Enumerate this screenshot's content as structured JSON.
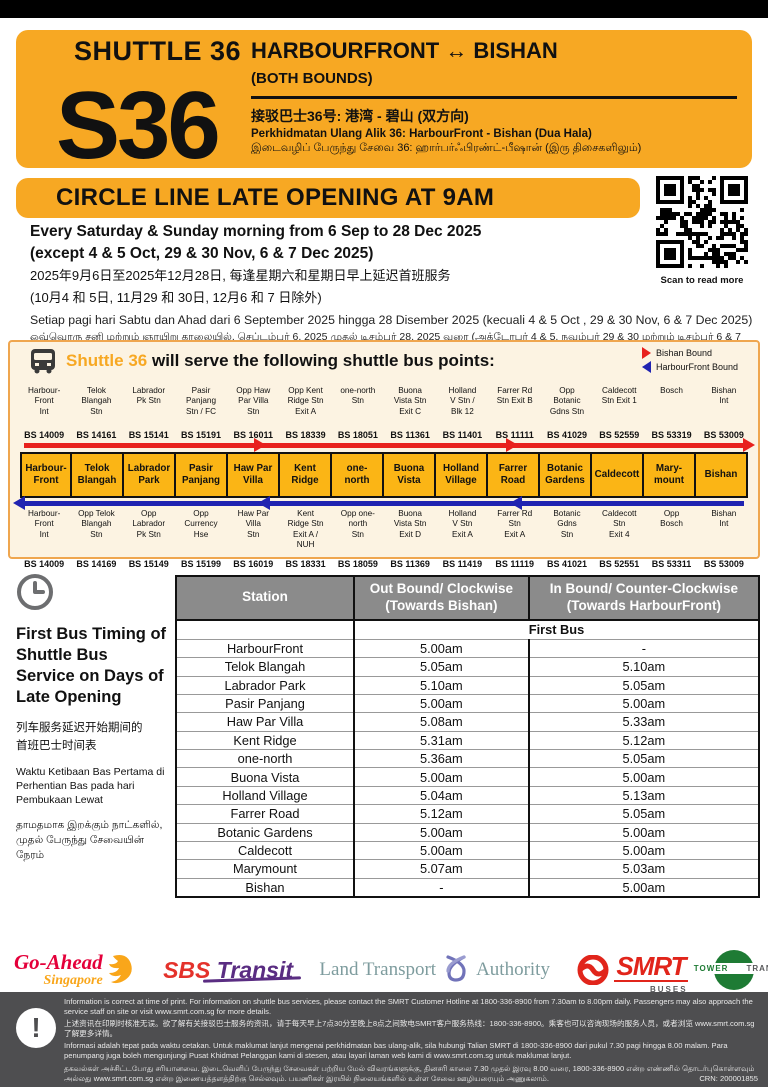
{
  "header": {
    "shuttle_label": "SHUTTLE 36",
    "route_code": "S36",
    "title_en": "HARBOURFRONT ↔ BISHAN",
    "subtitle_en": "(BOTH BOUNDS)",
    "title_zh": "接驳巴士36号: 港湾 - 碧山 (双方向)",
    "title_ms": "Perkhidmatan Ulang Alik 36: HarbourFront - Bishan (Dua Hala)",
    "title_ta": "இடைவழிப் பேருந்து சேவை 36: ஹார்பர்ஃபிரண்ட்-பீஷான் (இரு திசைகளிலும்)"
  },
  "notice": {
    "banner": "CIRCLE LINE LATE OPENING AT 9AM",
    "en_1": "Every Saturday & Sunday morning from 6 Sep to 28 Dec 2025",
    "en_2": "(except 4 & 5 Oct, 29 & 30 Nov, 6 & 7 Dec 2025)",
    "zh_1": "2025年9月6日至2025年12月28日, 每逢星期六和星期日早上延迟首班服务",
    "zh_2": "(10月4 和 5日, 11月29 和 30日, 12月6 和 7 日除外)",
    "ms": "Setiap pagi hari Sabtu dan Ahad dari 6 September 2025 hingga 28 Disember 2025 (kecuali 4 & 5 Oct , 29 & 30 Nov, 6 & 7 Dec 2025)",
    "ta": "ஒவ்வொரு சனி மற்றும் ஞாயிறு காலையில், செப்டம்பர் 6, 2025 முதல் டிசம்பர் 28, 2025 வரை (அக்டோபர் 4 & 5, நவம்பர் 29 & 30 மற்றும் டிசம்பர் 6 & 7 தவிர)",
    "qr_caption": "Scan to read more"
  },
  "route_map": {
    "title_prefix": "Shuttle 36",
    "title_rest": " will serve the following shuttle bus points:",
    "legend": [
      {
        "label": "Bishan Bound",
        "color": "#E8211D"
      },
      {
        "label": "HarbourFront Bound",
        "color": "#2023B1"
      }
    ],
    "outbound_stops": [
      {
        "name": "Harbour-\nFront\nInt",
        "code": "BS 14009"
      },
      {
        "name": "Telok\nBlangah\nStn",
        "code": "BS 14161"
      },
      {
        "name": "Labrador\nPk Stn",
        "code": "BS 15141"
      },
      {
        "name": "Pasir\nPanjang\nStn / FC",
        "code": "BS 15191"
      },
      {
        "name": "Opp Haw\nPar Villa\nStn",
        "code": "BS 16011"
      },
      {
        "name": "Opp Kent\nRidge Stn\nExit A",
        "code": "BS 18339"
      },
      {
        "name": "one-north\nStn",
        "code": "BS 18051"
      },
      {
        "name": "Buona\nVista Stn\nExit C",
        "code": "BS 11361"
      },
      {
        "name": "Holland\nV Stn /\nBlk 12",
        "code": "BS 11401"
      },
      {
        "name": "Farrer Rd\nStn Exit B",
        "code": "BS 11111"
      },
      {
        "name": "Opp\nBotanic\nGdns Stn",
        "code": "BS 41029"
      },
      {
        "name": "Caldecott\nStn Exit 1",
        "code": "BS 52559"
      },
      {
        "name": "Bosch",
        "code": "BS 53319"
      },
      {
        "name": "Bishan\nInt",
        "code": "BS 53009"
      }
    ],
    "stations": [
      "Harbour-\nFront",
      "Telok\nBlangah",
      "Labrador\nPark",
      "Pasir\nPanjang",
      "Haw Par\nVilla",
      "Kent\nRidge",
      "one-\nnorth",
      "Buona\nVista",
      "Holland\nVillage",
      "Farrer\nRoad",
      "Botanic\nGardens",
      "Caldecott",
      "Mary-\nmount",
      "Bishan"
    ],
    "inbound_stops": [
      {
        "name": "Harbour-\nFront\nInt",
        "code": "BS 14009"
      },
      {
        "name": "Opp Telok\nBlangah\nStn",
        "code": "BS 14169"
      },
      {
        "name": "Opp\nLabrador\nPk Stn",
        "code": "BS 15149"
      },
      {
        "name": "Opp\nCurrency\nHse",
        "code": "BS 15199"
      },
      {
        "name": "Haw Par\nVilla\nStn",
        "code": "BS 16019"
      },
      {
        "name": "Kent\nRidge Stn\nExit A /\nNUH",
        "code": "BS 18331"
      },
      {
        "name": "Opp one-\nnorth\nStn",
        "code": "BS 18059"
      },
      {
        "name": "Buona\nVista Stn\nExit D",
        "code": "BS 11369"
      },
      {
        "name": "Holland\nV Stn\nExit A",
        "code": "BS 11419"
      },
      {
        "name": "Farrer Rd\nStn\nExit A",
        "code": "BS 11119"
      },
      {
        "name": "Botanic\nGdns\nStn",
        "code": "BS 41021"
      },
      {
        "name": "Caldecott\nStn\nExit 4",
        "code": "BS 52551"
      },
      {
        "name": "Opp\nBosch",
        "code": "BS 53311"
      },
      {
        "name": "Bishan\nInt",
        "code": "BS 53009"
      }
    ]
  },
  "timing": {
    "heading_en": "First Bus Timing of Shuttle Bus Service on Days of Late Opening",
    "heading_zh": "列车服务延迟开始期间的\n首班巴士时间表",
    "heading_ms": "Waktu Ketibaan Bas Pertama di Perhentian Bas pada hari Pembukaan Lewat",
    "heading_ta": "தாமதமாக இறக்கும் நாட்களில், முதல் பேருந்து சேவையின் நேரம்"
  },
  "table": {
    "headers": [
      "Station",
      "Out Bound/ Clockwise (Towards Bishan)",
      "In Bound/ Counter-Clockwise (Towards HarbourFront)"
    ],
    "subheader": "First Bus",
    "rows": [
      [
        "HarbourFront",
        "5.00am",
        "-"
      ],
      [
        "Telok Blangah",
        "5.05am",
        "5.10am"
      ],
      [
        "Labrador Park",
        "5.10am",
        "5.05am"
      ],
      [
        "Pasir Panjang",
        "5.00am",
        "5.00am"
      ],
      [
        "Haw Par Villa",
        "5.08am",
        "5.33am"
      ],
      [
        "Kent Ridge",
        "5.31am",
        "5.12am"
      ],
      [
        "one-north",
        "5.36am",
        "5.05am"
      ],
      [
        "Buona Vista",
        "5.00am",
        "5.00am"
      ],
      [
        "Holland Village",
        "5.04am",
        "5.13am"
      ],
      [
        "Farrer Road",
        "5.12am",
        "5.05am"
      ],
      [
        "Botanic Gardens",
        "5.00am",
        "5.00am"
      ],
      [
        "Caldecott",
        "5.00am",
        "5.00am"
      ],
      [
        "Marymount",
        "5.07am",
        "5.03am"
      ],
      [
        "Bishan",
        "-",
        "5.00am"
      ]
    ]
  },
  "logos": {
    "goahead_1": "Go-Ahead",
    "goahead_2": "Singapore",
    "sbs_1": "SBS ",
    "sbs_2": "Transit",
    "lta_1": "Land Transport",
    "lta_2": "Authority",
    "smrt": "SMRT",
    "smrt_sub": "BUSES",
    "tower_1": "TOWER",
    "tower_2": "TRANSIT"
  },
  "footer": {
    "en": "Information is correct at time of print. For information on shuttle bus services, please contact the SMRT Customer Hotline at 1800-336-8900 from 7.30am to 8.00pm daily. Passengers may also approach the service staff on site or visit www.smrt.com.sg for more details.",
    "zh": "上述资讯在印刷时核准无误。欲了解有关接驳巴士服务的资讯，请于每天早上7点30分至晚上8点之间致电SMRT客户服务热线：1800-336-8900。乘客也可以咨询现场的服务人员，或者浏览 www.smrt.com.sg 了解更多详情。",
    "ms": "Informasi adalah tepat pada waktu cetakan. Untuk maklumat lanjut mengenai perkhidmatan bas ulang-alik, sila hubungi Talian SMRT di 1800-336-8900 dari pukul 7.30 pagi hingga 8.00 malam. Para penumpang juga boleh mengunjungi Pusat Khidmat Pelanggan kami di stesen, atau layari laman web kami di www.smrt.com.sg untuk maklumat lanjut.",
    "ta": "தகவல்கள் அச்சிட்டபோது சரியானவை. இடைவெளிப் பேருந்து சேவைகள் பற்றிய மேல் விவரங்களுக்கு, தினசரி காலை 7.30 முதல் இரவு 8.00 வரை, 1800-336-8900 என்ற எண்ணில் தொடர்புகொள்ளவும் அல்லது www.smrt.com.sg என்ற இணையத்தளத்திற்கு செல்லவும். பயணிகள் இரயில் நிலையங்களில் உள்ள சேவை ஊழியரையும் அணுகலாம்.",
    "crn": "CRN: 200001855"
  }
}
